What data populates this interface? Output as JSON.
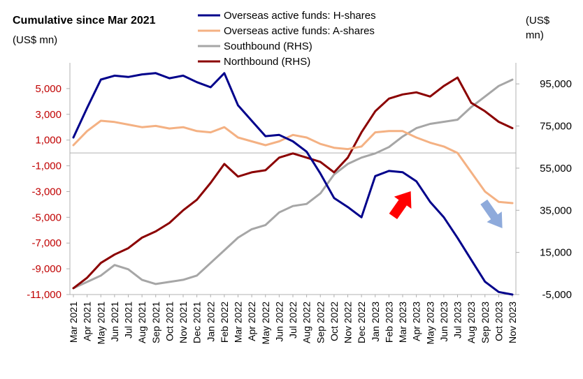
{
  "chart_data": {
    "type": "line",
    "title": "Cumulative since Mar 2021",
    "ylabel": "(US$ mn)",
    "ylabel_right": [
      "(US$",
      "mn)"
    ],
    "x": [
      "Mar 2021",
      "Apr 2021",
      "May 2021",
      "Jun 2021",
      "Jul 2021",
      "Aug 2021",
      "Sep 2021",
      "Oct 2021",
      "Nov 2021",
      "Dec 2021",
      "Jan 2022",
      "Feb 2022",
      "Mar 2022",
      "Apr 2022",
      "May 2022",
      "Jun 2022",
      "Jul 2022",
      "Aug 2022",
      "Sep 2022",
      "Oct 2022",
      "Nov 2022",
      "Dec 2022",
      "Jan 2023",
      "Feb 2023",
      "Mar 2023",
      "Apr 2023",
      "May 2023",
      "Jun 2023",
      "Jul 2023",
      "Aug 2023",
      "Sep 2023",
      "Oct 2023",
      "Nov 2023"
    ],
    "ylim_left": [
      -11000,
      7000
    ],
    "yticks_left": [
      5000,
      3000,
      1000,
      -1000,
      -3000,
      -5000,
      -7000,
      -9000,
      -11000
    ],
    "yticklabels_left": [
      "5,000",
      "3,000",
      "1,000",
      "-1,000",
      "-3,000",
      "-5,000",
      "-7,000",
      "-9,000",
      "-11,000"
    ],
    "ylim_right": [
      -5000,
      105000
    ],
    "yticks_right": [
      95000,
      75000,
      55000,
      35000,
      15000,
      -5000
    ],
    "yticklabels_right": [
      "95,000",
      "75,000",
      "55,000",
      "35,000",
      "15,000",
      "-5,000"
    ],
    "legend_position": "top-center",
    "series": [
      {
        "name": "Overseas active funds: H-shares",
        "axis": "left",
        "color": "#00008b",
        "values": [
          1200,
          3500,
          5700,
          6000,
          5900,
          6100,
          6200,
          5800,
          6000,
          5500,
          5100,
          6200,
          3700,
          2500,
          1300,
          1400,
          900,
          100,
          -1600,
          -3500,
          -4200,
          -5000,
          -1800,
          -1400,
          -1500,
          -2200,
          -3800,
          -5000,
          -6600,
          -8300,
          -10000,
          -10800,
          -11000
        ]
      },
      {
        "name": "Overseas active funds: A-shares",
        "axis": "left",
        "color": "#f4b183",
        "values": [
          600,
          1700,
          2500,
          2400,
          2200,
          2000,
          2100,
          1900,
          2000,
          1700,
          1600,
          2000,
          1200,
          900,
          600,
          900,
          1400,
          1200,
          700,
          400,
          300,
          500,
          1600,
          1700,
          1700,
          1200,
          800,
          500,
          0,
          -1500,
          -3000,
          -3800,
          -3900
        ]
      },
      {
        "name": "Southbound (RHS)",
        "axis": "right",
        "color": "#a6a6a6",
        "values": [
          -2000,
          1000,
          4000,
          9000,
          7000,
          2000,
          0,
          1000,
          2000,
          4000,
          10000,
          16000,
          22000,
          26000,
          28000,
          34000,
          37000,
          38000,
          43000,
          52000,
          57000,
          60000,
          62000,
          65000,
          70000,
          74000,
          76000,
          77000,
          78000,
          84000,
          89000,
          94000,
          97000
        ]
      },
      {
        "name": "Northbound (RHS)",
        "axis": "right",
        "color": "#8b0000",
        "values": [
          -2000,
          3000,
          10000,
          14000,
          17000,
          22000,
          25000,
          29000,
          35000,
          40000,
          48000,
          57000,
          51000,
          53000,
          54000,
          60000,
          62000,
          60000,
          58000,
          53000,
          60000,
          72000,
          82000,
          88000,
          90000,
          91000,
          89000,
          94000,
          98000,
          86000,
          82000,
          77000,
          74000
        ]
      }
    ],
    "annotations": [
      {
        "type": "arrow",
        "color": "#ff0000",
        "direction": "up"
      },
      {
        "type": "arrow",
        "color": "#8eaadb",
        "direction": "down"
      }
    ]
  }
}
